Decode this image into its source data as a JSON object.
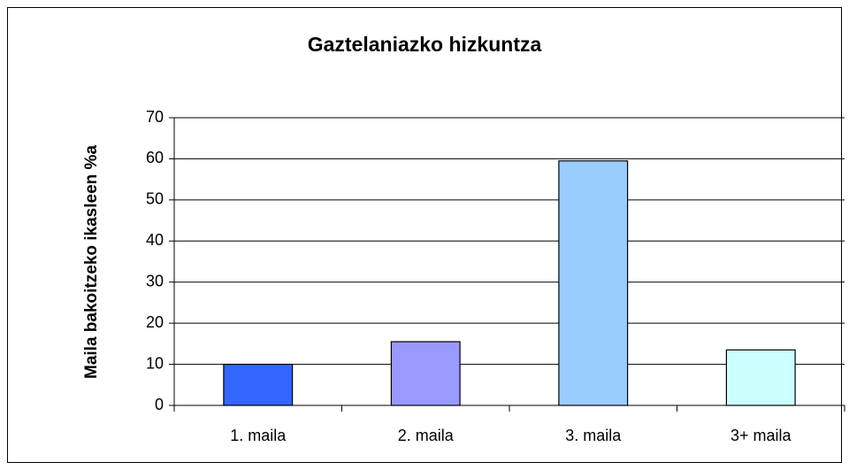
{
  "chart_data": {
    "type": "bar",
    "title": "Gaztelaniazko hizkuntza",
    "y_label": "Maila bakoitzeko ikasleen %a",
    "categories": [
      "1. maila",
      "2. maila",
      "3. maila",
      "3+ maila"
    ],
    "values": [
      10,
      15.5,
      59.5,
      13.5
    ],
    "colors": [
      "#3366ff",
      "#9999ff",
      "#99ccff",
      "#ccffff"
    ],
    "ylim": [
      0,
      70
    ],
    "yticks": [
      0,
      10,
      20,
      30,
      40,
      50,
      60,
      70
    ],
    "grid": true
  }
}
